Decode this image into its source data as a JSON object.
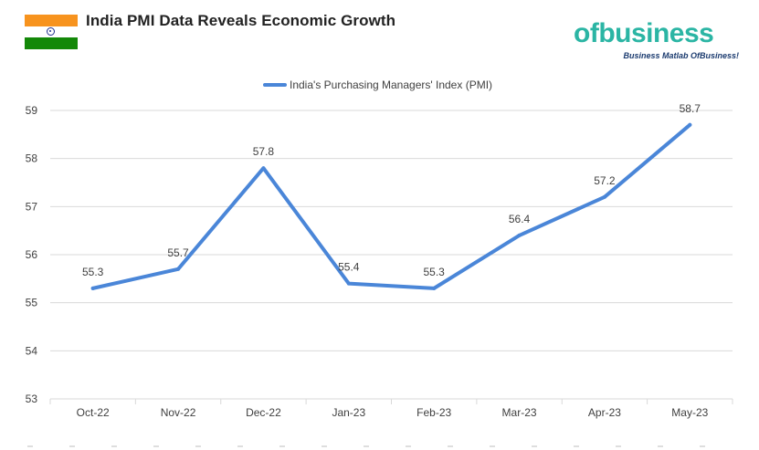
{
  "header": {
    "title": "India PMI Data Reveals Economic Growth",
    "flag_icon": "india-flag-icon"
  },
  "logo": {
    "text": "ofbusiness",
    "tagline": "Business Matlab OfBusiness!"
  },
  "colors": {
    "line": "#4a86d8",
    "grid": "#d9d9d9",
    "text": "#404040",
    "brand_teal": "#2bb5a4",
    "brand_navy": "#1b3b6f"
  },
  "chart_data": {
    "type": "line",
    "title": "",
    "xlabel": "",
    "ylabel": "",
    "ylim": [
      53,
      59
    ],
    "yticks": [
      53,
      54,
      55,
      56,
      57,
      58,
      59
    ],
    "grid": true,
    "legend_position": "top-center",
    "categories": [
      "Oct-22",
      "Nov-22",
      "Dec-22",
      "Jan-23",
      "Feb-23",
      "Mar-23",
      "Apr-23",
      "May-23"
    ],
    "series": [
      {
        "name": "India's Purchasing Managers' Index (PMI)",
        "values": [
          55.3,
          55.7,
          57.8,
          55.4,
          55.3,
          56.4,
          57.2,
          58.7
        ],
        "labels": [
          "55.3",
          "55.7",
          "57.8",
          "55.4",
          "55.3",
          "56.4",
          "57.2",
          "58.7"
        ]
      }
    ]
  }
}
